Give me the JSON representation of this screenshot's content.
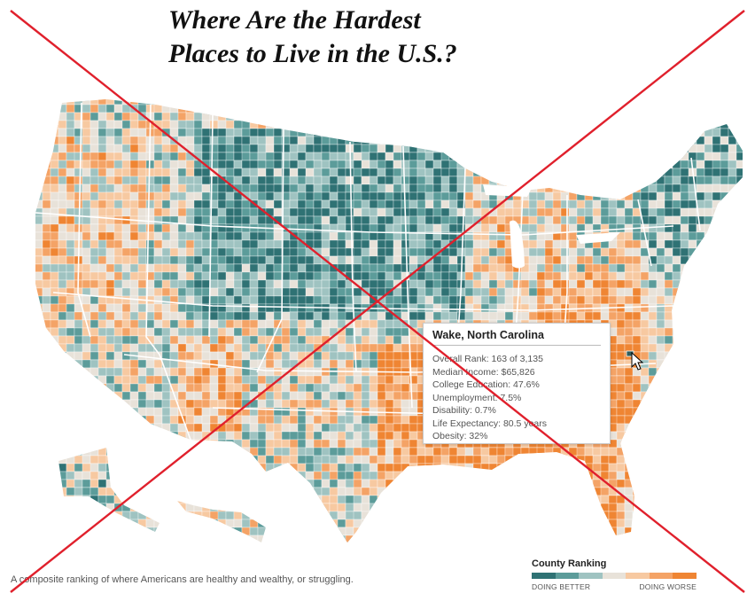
{
  "title": {
    "line1": "Where Are the Hardest",
    "line2": "Places to Live in the U.S.?"
  },
  "tooltip": {
    "county": "Wake, North Carolina",
    "rows": [
      "Overall Rank: 163 of 3,135",
      "Median Income: $65,826",
      "College Education: 47.6%",
      "Unemployment: 7.5%",
      "Disability: 0.7%",
      "Life Expectancy: 80.5 years",
      "Obesity: 32%"
    ]
  },
  "caption": "A composite ranking of where Americans are healthy and wealthy, or struggling.",
  "legend": {
    "title": "County Ranking",
    "better_label": "DOING BETTER",
    "worse_label": "DOING WORSE",
    "colors": [
      "#2f7274",
      "#5c9c9a",
      "#9fc3c1",
      "#e8e2d9",
      "#f7c9a1",
      "#f4a366",
      "#ef8533"
    ]
  },
  "colors": {
    "cross": "#e0202c",
    "state_border": "#ffffff"
  }
}
